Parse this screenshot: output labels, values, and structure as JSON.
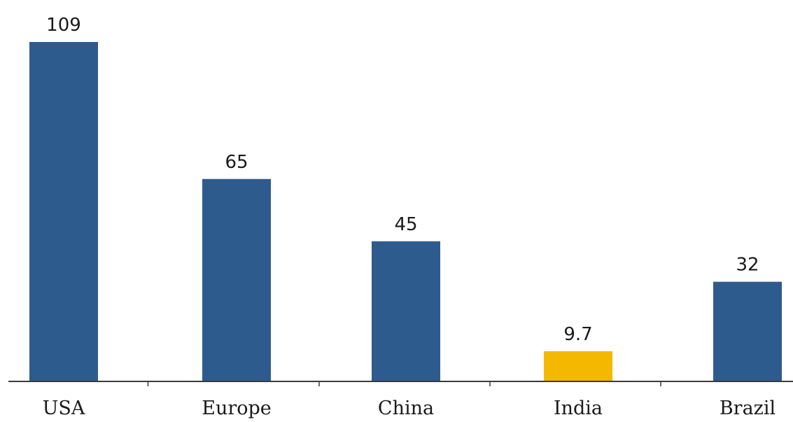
{
  "chart_data": {
    "type": "bar",
    "title": "",
    "xlabel": "",
    "ylabel": "",
    "categories": [
      "USA",
      "Europe",
      "China",
      "India",
      "Brazil"
    ],
    "values": [
      109,
      65,
      45,
      9.7,
      32
    ],
    "value_labels": [
      "109",
      "65",
      "45",
      "9.7",
      "32"
    ],
    "ylim": [
      0,
      109
    ],
    "grid": false,
    "legend": "none",
    "colors": {
      "default": "#2e5b8e",
      "highlight": "#f5b800",
      "highlight_category": "India"
    }
  }
}
